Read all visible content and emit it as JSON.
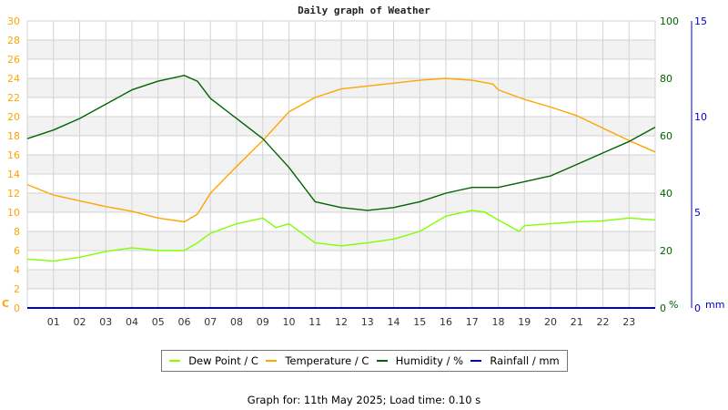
{
  "title": "Daily graph of Weather",
  "footer": "Graph for: 11th May 2025; Load time: 0.10 s",
  "colors": {
    "dew_point": "#7fff00",
    "temperature": "#ffa500",
    "humidity": "#006400",
    "rainfall": "#0000cd",
    "temp_axis": "#ffa500",
    "humidity_axis": "#006400",
    "rain_axis": "#0000cd",
    "grid": "#d3d3d3",
    "band": "#f2f2f2"
  },
  "axes": {
    "left_unit": "C",
    "right1_unit": "%",
    "right2_unit": "mm"
  },
  "legend": [
    {
      "label": "Dew Point / C",
      "color": "#7fff00"
    },
    {
      "label": "Temperature / C",
      "color": "#ffa500"
    },
    {
      "label": "Humidity / %",
      "color": "#006400"
    },
    {
      "label": "Rainfall / mm",
      "color": "#0000cd"
    }
  ],
  "chart_data": {
    "type": "line",
    "title": "Daily graph of Weather",
    "xlabel": "",
    "x_ticks": [
      "01",
      "02",
      "03",
      "04",
      "05",
      "06",
      "07",
      "08",
      "09",
      "10",
      "11",
      "12",
      "13",
      "14",
      "15",
      "16",
      "17",
      "18",
      "19",
      "20",
      "21",
      "22",
      "23"
    ],
    "xlim": [
      0,
      24
    ],
    "y_axes": [
      {
        "name": "Temperature / Dew Point",
        "unit": "C",
        "ylim": [
          0,
          30
        ],
        "ticks": [
          0,
          2,
          4,
          6,
          8,
          10,
          12,
          14,
          16,
          18,
          20,
          22,
          24,
          26,
          28,
          30
        ],
        "side": "left"
      },
      {
        "name": "Humidity",
        "unit": "%",
        "ylim": [
          0,
          100
        ],
        "ticks": [
          0,
          20,
          40,
          60,
          80,
          100
        ],
        "side": "right"
      },
      {
        "name": "Rainfall",
        "unit": "mm",
        "ylim": [
          0,
          15
        ],
        "ticks": [
          0,
          5,
          10,
          15
        ],
        "side": "right"
      }
    ],
    "grid": true,
    "legend_position": "bottom",
    "series": [
      {
        "name": "Dew Point / C",
        "axis": "C",
        "x": [
          0,
          1,
          2,
          3,
          4,
          5,
          6,
          6.5,
          7,
          8,
          9,
          9.5,
          10,
          10.5,
          11,
          12,
          13,
          14,
          15,
          16,
          17,
          17.5,
          18,
          18.8,
          19,
          20,
          21,
          22,
          23,
          24
        ],
        "values": [
          5.1,
          4.9,
          5.3,
          5.9,
          6.3,
          6.0,
          6.0,
          6.8,
          7.8,
          8.8,
          9.4,
          8.4,
          8.8,
          7.8,
          6.8,
          6.5,
          6.8,
          7.2,
          8.0,
          9.6,
          10.2,
          10.0,
          9.2,
          8.0,
          8.6,
          8.8,
          9.0,
          9.1,
          9.4,
          9.2
        ]
      },
      {
        "name": "Temperature / C",
        "axis": "C",
        "x": [
          0,
          1,
          2,
          3,
          4,
          5,
          6,
          6.5,
          7,
          8,
          9,
          10,
          11,
          12,
          13,
          14,
          15,
          16,
          17,
          17.8,
          18,
          19,
          20,
          21,
          22,
          23,
          24
        ],
        "values": [
          12.9,
          11.8,
          11.2,
          10.6,
          10.1,
          9.4,
          9.0,
          9.8,
          12.0,
          14.8,
          17.5,
          20.5,
          22.0,
          22.9,
          23.2,
          23.5,
          23.8,
          24.0,
          23.8,
          23.4,
          22.8,
          21.8,
          21.0,
          20.1,
          18.8,
          17.5,
          16.3
        ]
      },
      {
        "name": "Humidity / %",
        "axis": "%",
        "x": [
          0,
          1,
          2,
          3,
          4,
          5,
          6,
          6.5,
          7,
          8,
          9,
          10,
          11,
          12,
          13,
          14,
          15,
          16,
          17,
          18,
          19,
          20,
          21,
          22,
          23,
          24
        ],
        "values": [
          59,
          62,
          66,
          71,
          76,
          79,
          81,
          79,
          73,
          66,
          59,
          49,
          37,
          35,
          34,
          35,
          37,
          40,
          42,
          42,
          44,
          46,
          50,
          54,
          58,
          63
        ]
      },
      {
        "name": "Rainfall / mm",
        "axis": "mm",
        "x": [
          0,
          24
        ],
        "values": [
          0,
          0
        ]
      }
    ]
  }
}
